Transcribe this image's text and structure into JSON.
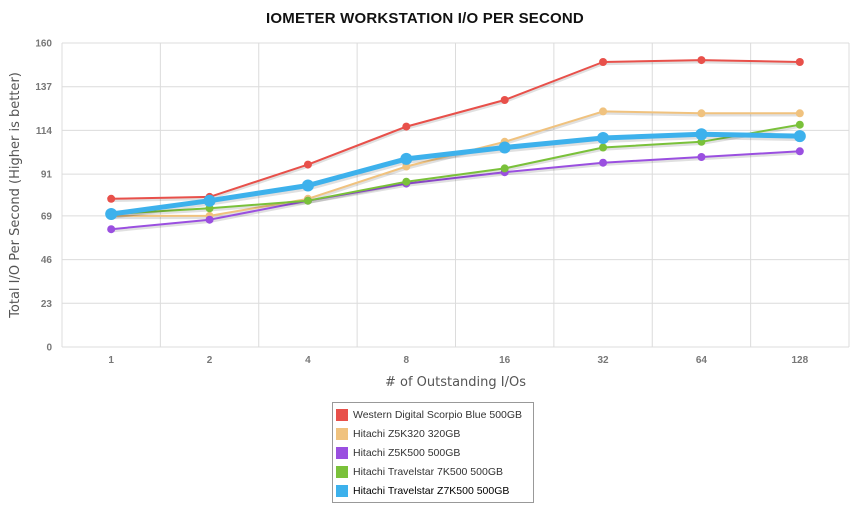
{
  "chart_data": {
    "type": "line",
    "title": "IOMETER WORKSTATION I/O PER SECOND",
    "xlabel": "# of Outstanding I/Os",
    "ylabel": "Total I/O Per Second (Higher is better)",
    "categories": [
      "1",
      "2",
      "4",
      "8",
      "16",
      "32",
      "64",
      "128"
    ],
    "y_ticks": [
      "0",
      "23",
      "46",
      "69",
      "91",
      "114",
      "137",
      "160"
    ],
    "ylim": [
      0,
      160
    ],
    "grid": true,
    "legend_position": "bottom-center",
    "series": [
      {
        "name": "Western Digital Scorpio Blue 500GB",
        "color": "#e8504a",
        "values": [
          78,
          79,
          96,
          116,
          130,
          150,
          151,
          150
        ]
      },
      {
        "name": "Hitachi Z5K320 320GB",
        "color": "#f0c27e",
        "values": [
          69,
          69,
          78,
          95,
          108,
          124,
          123,
          123
        ]
      },
      {
        "name": "Hitachi Z5K500 500GB",
        "color": "#9a4fe0",
        "values": [
          62,
          67,
          77,
          86,
          92,
          97,
          100,
          103
        ]
      },
      {
        "name": "Hitachi Travelstar 7K500 500GB",
        "color": "#7ac13a",
        "values": [
          70,
          73,
          77,
          87,
          94,
          105,
          108,
          117
        ]
      },
      {
        "name": "Hitachi Travelstar Z7K500 500GB",
        "color": "#3db1ec",
        "values": [
          70,
          77,
          85,
          99,
          105,
          110,
          112,
          111
        ]
      }
    ]
  }
}
